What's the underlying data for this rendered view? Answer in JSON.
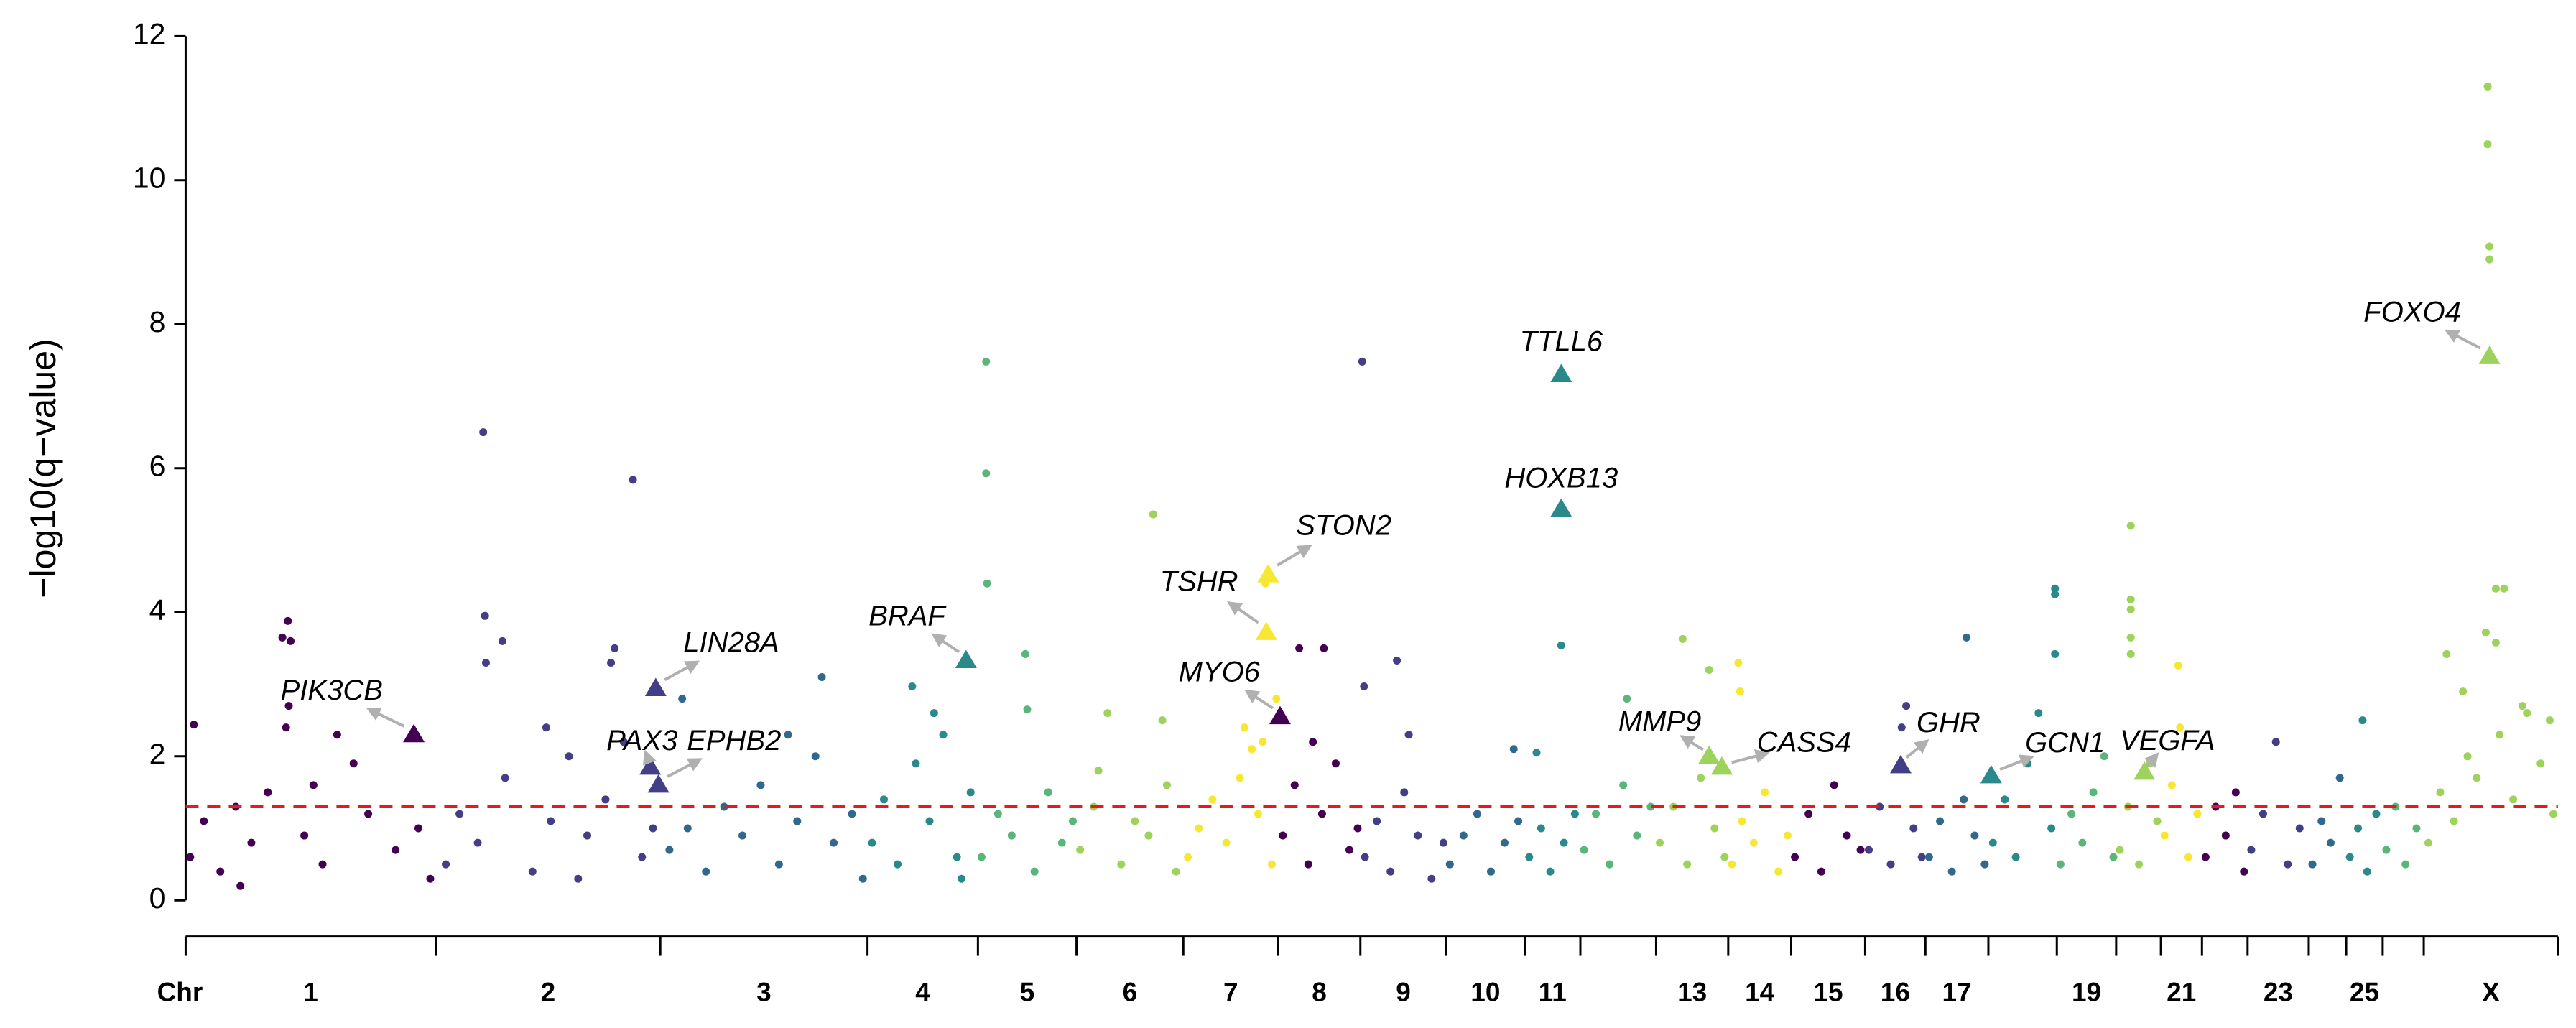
{
  "chart_data": {
    "type": "manhattan",
    "ylabel": "−log10(q−value)",
    "xlabel": "Chr",
    "ylim": [
      0,
      12
    ],
    "yticks": [
      0,
      2,
      4,
      6,
      8,
      10,
      12
    ],
    "xlim": [
      0,
      2599
    ],
    "xticks": [
      0,
      274,
      520,
      747,
      868,
      976,
      1093,
      1197,
      1287,
      1381,
      1467,
      1528,
      1611,
      1690,
      1759,
      1840,
      1906,
      1975,
      2050,
      2115,
      2164,
      2209,
      2259,
      2326,
      2367,
      2407,
      2452,
      2599
    ],
    "threshold": 1.3,
    "threshold_color": "#e41a1c",
    "chromosomes": [
      {
        "label": "1",
        "color": "#440154",
        "x": [
          5,
          20,
          38,
          55,
          72,
          90,
          130,
          150,
          200,
          230,
          255,
          268,
          9,
          112,
          106,
          115,
          113,
          110,
          166,
          184,
          60,
          140
        ],
        "values": [
          0.6,
          1.1,
          0.4,
          1.3,
          0.8,
          1.5,
          0.9,
          0.5,
          1.2,
          0.7,
          1.0,
          0.3,
          2.44,
          3.88,
          3.65,
          3.6,
          2.7,
          2.4,
          2.3,
          1.9,
          0.2,
          1.6
        ]
      },
      {
        "label": "2",
        "color": "#433e85",
        "x": [
          285,
          300,
          320,
          350,
          380,
          400,
          420,
          440,
          460,
          480,
          500,
          512,
          326,
          328,
          347,
          329,
          490,
          470,
          466,
          395,
          430
        ],
        "values": [
          0.5,
          1.2,
          0.8,
          1.7,
          0.4,
          1.1,
          2.0,
          0.9,
          1.4,
          2.2,
          0.6,
          1.0,
          6.5,
          3.95,
          3.6,
          3.3,
          5.84,
          3.5,
          3.3,
          2.4,
          0.3
        ]
      },
      {
        "label": "3",
        "color": "#31688e",
        "x": [
          530,
          550,
          570,
          590,
          610,
          630,
          650,
          670,
          690,
          710,
          730,
          742,
          544,
          697,
          660
        ],
        "values": [
          0.7,
          1.0,
          0.4,
          1.3,
          0.9,
          1.6,
          0.5,
          1.1,
          2.0,
          0.8,
          1.2,
          0.3,
          2.8,
          3.1,
          2.3
        ]
      },
      {
        "label": "4",
        "color": "#2a8a8b",
        "x": [
          752,
          765,
          780,
          800,
          815,
          830,
          845,
          860,
          796,
          820,
          850
        ],
        "values": [
          0.8,
          1.4,
          0.5,
          1.9,
          1.1,
          2.3,
          0.6,
          1.5,
          2.97,
          2.6,
          0.3
        ]
      },
      {
        "label": "5",
        "color": "#5ab57a",
        "x": [
          872,
          890,
          905,
          930,
          945,
          960,
          972,
          877,
          877,
          878,
          920,
          922
        ],
        "values": [
          0.6,
          1.2,
          0.9,
          0.4,
          1.5,
          0.8,
          1.1,
          7.48,
          5.93,
          4.4,
          3.42,
          2.65
        ]
      },
      {
        "label": "6",
        "color": "#9dd35c",
        "x": [
          980,
          995,
          1010,
          1025,
          1040,
          1055,
          1070,
          1085,
          1060,
          1000,
          1075
        ],
        "values": [
          0.7,
          1.3,
          2.6,
          0.5,
          1.1,
          0.9,
          2.5,
          0.4,
          5.36,
          1.8,
          1.6
        ]
      },
      {
        "label": "7",
        "color": "#f6e734",
        "x": [
          1098,
          1110,
          1125,
          1140,
          1155,
          1168,
          1175,
          1190,
          1183,
          1195,
          1160,
          1180
        ],
        "values": [
          0.6,
          1.0,
          1.4,
          0.8,
          1.7,
          2.1,
          1.2,
          0.5,
          4.4,
          2.8,
          2.4,
          2.2
        ]
      },
      {
        "label": "8",
        "color": "#440154",
        "x": [
          1202,
          1215,
          1230,
          1245,
          1260,
          1275,
          1284,
          1247,
          1220,
          1235
        ],
        "values": [
          0.9,
          1.6,
          0.5,
          1.2,
          1.9,
          0.7,
          1.0,
          3.5,
          3.5,
          2.2
        ]
      },
      {
        "label": "9",
        "color": "#433e85",
        "x": [
          1292,
          1305,
          1320,
          1335,
          1350,
          1365,
          1378,
          1289,
          1327,
          1291,
          1340
        ],
        "values": [
          0.6,
          1.1,
          0.4,
          1.5,
          0.9,
          0.3,
          0.8,
          7.48,
          3.33,
          2.97,
          2.3
        ]
      },
      {
        "label": "10",
        "color": "#31688e",
        "x": [
          1385,
          1400,
          1415,
          1430,
          1445,
          1460,
          1455
        ],
        "values": [
          0.5,
          0.9,
          1.2,
          0.4,
          0.8,
          1.1,
          2.1
        ]
      },
      {
        "label": "11",
        "color": "#2a8a8b",
        "x": [
          1472,
          1485,
          1495,
          1510,
          1522,
          1507,
          1480
        ],
        "values": [
          0.6,
          1.0,
          0.4,
          0.8,
          1.2,
          3.54,
          2.05
        ]
      },
      {
        "label": null,
        "color": "#5ab57a",
        "x": [
          1532,
          1545,
          1560,
          1575,
          1590,
          1605,
          1579
        ],
        "values": [
          0.7,
          1.2,
          0.5,
          1.6,
          0.9,
          1.3,
          2.8
        ]
      },
      {
        "label": "13",
        "color": "#9dd35c",
        "x": [
          1615,
          1630,
          1645,
          1660,
          1675,
          1686,
          1640,
          1669
        ],
        "values": [
          0.8,
          1.3,
          0.5,
          1.7,
          1.0,
          0.6,
          3.63,
          3.2
        ]
      },
      {
        "label": "14",
        "color": "#f6e734",
        "x": [
          1694,
          1705,
          1718,
          1730,
          1745,
          1755,
          1701,
          1703
        ],
        "values": [
          0.5,
          1.1,
          0.8,
          1.5,
          0.4,
          0.9,
          3.3,
          2.9
        ]
      },
      {
        "label": "15",
        "color": "#440154",
        "x": [
          1763,
          1778,
          1792,
          1806,
          1820,
          1835
        ],
        "values": [
          0.6,
          1.2,
          0.4,
          1.6,
          0.9,
          0.7
        ]
      },
      {
        "label": "16",
        "color": "#433e85",
        "x": [
          1844,
          1856,
          1868,
          1880,
          1893,
          1902,
          1885
        ],
        "values": [
          0.7,
          1.3,
          0.5,
          2.4,
          1.0,
          0.6,
          2.7
        ]
      },
      {
        "label": "17",
        "color": "#31688e",
        "x": [
          1910,
          1922,
          1935,
          1948,
          1960,
          1971,
          1951
        ],
        "values": [
          0.6,
          1.1,
          0.4,
          1.4,
          0.9,
          0.5,
          3.65
        ]
      },
      {
        "label": null,
        "color": "#2a8a8b",
        "x": [
          1980,
          1993,
          2005,
          2018,
          2030,
          2044,
          2048,
          2048,
          2048
        ],
        "values": [
          0.8,
          1.4,
          0.6,
          1.9,
          2.6,
          1.0,
          4.33,
          4.25,
          3.42
        ]
      },
      {
        "label": "19",
        "color": "#5ab57a",
        "x": [
          2054,
          2066,
          2078,
          2090,
          2102,
          2112
        ],
        "values": [
          0.5,
          1.2,
          0.8,
          1.5,
          2.0,
          0.6
        ]
      },
      {
        "label": null,
        "color": "#9dd35c",
        "x": [
          2119,
          2128,
          2140,
          2152,
          2160,
          2131,
          2131,
          2131,
          2131,
          2131
        ],
        "values": [
          0.7,
          1.3,
          0.5,
          1.9,
          1.1,
          5.2,
          4.18,
          4.04,
          3.65,
          3.42
        ]
      },
      {
        "label": "21",
        "color": "#f6e734",
        "x": [
          2168,
          2176,
          2185,
          2194,
          2204,
          2183
        ],
        "values": [
          0.9,
          1.6,
          2.4,
          0.6,
          1.2,
          3.26
        ]
      },
      {
        "label": null,
        "color": "#440154",
        "x": [
          2213,
          2224,
          2235,
          2246,
          2255
        ],
        "values": [
          0.6,
          1.3,
          0.9,
          1.5,
          0.4
        ]
      },
      {
        "label": "23",
        "color": "#433e85",
        "x": [
          2263,
          2276,
          2290,
          2303,
          2316
        ],
        "values": [
          0.7,
          1.2,
          2.2,
          0.5,
          1.0
        ]
      },
      {
        "label": null,
        "color": "#31688e",
        "x": [
          2330,
          2340,
          2350,
          2360
        ],
        "values": [
          0.5,
          1.1,
          0.8,
          1.7
        ]
      },
      {
        "label": "25",
        "color": "#2a8a8b",
        "x": [
          2371,
          2380,
          2390,
          2400,
          2385
        ],
        "values": [
          0.6,
          1.0,
          0.4,
          1.2,
          2.5
        ]
      },
      {
        "label": null,
        "color": "#5ab57a",
        "x": [
          2411,
          2421,
          2432,
          2444
        ],
        "values": [
          0.7,
          1.3,
          0.5,
          1.0
        ]
      },
      {
        "label": "X",
        "color": "#9dd35c",
        "x": [
          2457,
          2470,
          2485,
          2500,
          2510,
          2535,
          2550,
          2565,
          2580,
          2594,
          2522,
          2522,
          2524,
          2524,
          2531,
          2540,
          2520,
          2531,
          2477,
          2495,
          2560,
          2590
        ],
        "values": [
          0.8,
          1.5,
          1.1,
          2.0,
          1.7,
          2.3,
          1.4,
          2.6,
          1.9,
          1.2,
          11.3,
          10.5,
          9.08,
          8.9,
          4.33,
          4.33,
          3.72,
          3.58,
          3.42,
          2.9,
          2.7,
          2.5
        ]
      }
    ],
    "genes": [
      {
        "label": "PIK3CB",
        "x": 250,
        "value": 2.3
      },
      {
        "label": "LIN28A",
        "x": 515,
        "value": 2.94
      },
      {
        "label": "PAX3",
        "x": 509,
        "value": 1.85
      },
      {
        "label": "EPHB2",
        "x": 518,
        "value": 1.6
      },
      {
        "label": "BRAF",
        "x": 855,
        "value": 3.33
      },
      {
        "label": "TSHR",
        "x": 1184,
        "value": 3.72
      },
      {
        "label": "STON2",
        "x": 1186,
        "value": 4.52
      },
      {
        "label": "MYO6",
        "x": 1199,
        "value": 2.55
      },
      {
        "label": "TTLL6",
        "x": 1507,
        "value": 7.3
      },
      {
        "label": "HOXB13",
        "x": 1507,
        "value": 5.43
      },
      {
        "label": "MMP9",
        "x": 1669,
        "value": 2.0
      },
      {
        "label": "CASS4",
        "x": 1683,
        "value": 1.85
      },
      {
        "label": "GHR",
        "x": 1879,
        "value": 1.87
      },
      {
        "label": "GCN1",
        "x": 1978,
        "value": 1.73
      },
      {
        "label": "VEGFA",
        "x": 2146,
        "value": 1.78
      },
      {
        "label": "FOXO4",
        "x": 2524,
        "value": 7.55
      }
    ]
  }
}
